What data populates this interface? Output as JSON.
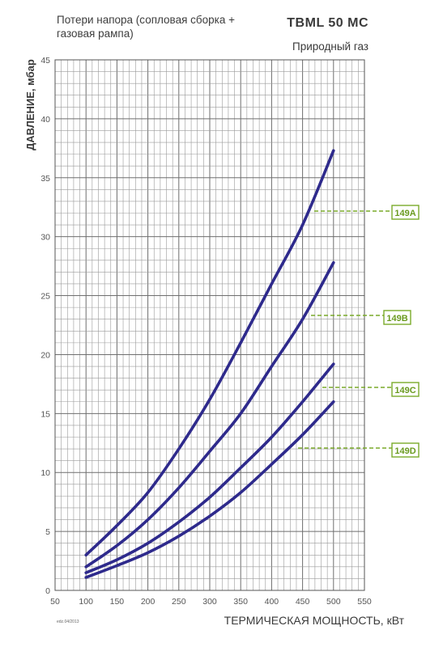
{
  "chart_data": {
    "type": "line",
    "title": "TBML 50 MC",
    "subtitle": "Потери напора (сопловая сборка + газовая рампа)",
    "gas_label": "Природный газ",
    "xlabel": "ТЕРМИЧЕСКАЯ МОЩНОСТЬ, кВт",
    "ylabel": "ДАВЛЕНИЕ, мбар",
    "footnote": "edz.04/2013",
    "xlim": [
      50,
      550
    ],
    "ylim": [
      0,
      45
    ],
    "x_ticks": [
      50,
      100,
      150,
      200,
      250,
      300,
      350,
      400,
      450,
      500,
      550
    ],
    "y_ticks": [
      0,
      5,
      10,
      15,
      20,
      25,
      30,
      35,
      40,
      45
    ],
    "grid": true,
    "line_color": "#2e2a8c",
    "callout_color": "#7aaa2a",
    "series": [
      {
        "name": "149A",
        "x": [
          100,
          150,
          200,
          250,
          300,
          350,
          400,
          450,
          500
        ],
        "values": [
          3.0,
          5.5,
          8.3,
          12.0,
          16.2,
          21.0,
          26.0,
          31.0,
          37.3
        ]
      },
      {
        "name": "149B",
        "x": [
          100,
          150,
          200,
          250,
          300,
          350,
          400,
          450,
          500
        ],
        "values": [
          2.0,
          3.8,
          6.0,
          8.7,
          11.8,
          15.0,
          19.0,
          23.0,
          27.8
        ]
      },
      {
        "name": "149C",
        "x": [
          100,
          150,
          200,
          250,
          300,
          350,
          400,
          450,
          500
        ],
        "values": [
          1.5,
          2.6,
          4.0,
          5.8,
          7.9,
          10.4,
          13.0,
          16.0,
          19.2
        ]
      },
      {
        "name": "149D",
        "x": [
          100,
          150,
          200,
          250,
          300,
          350,
          400,
          450,
          500
        ],
        "values": [
          1.1,
          2.1,
          3.2,
          4.6,
          6.3,
          8.3,
          10.7,
          13.2,
          16.0
        ]
      }
    ]
  }
}
